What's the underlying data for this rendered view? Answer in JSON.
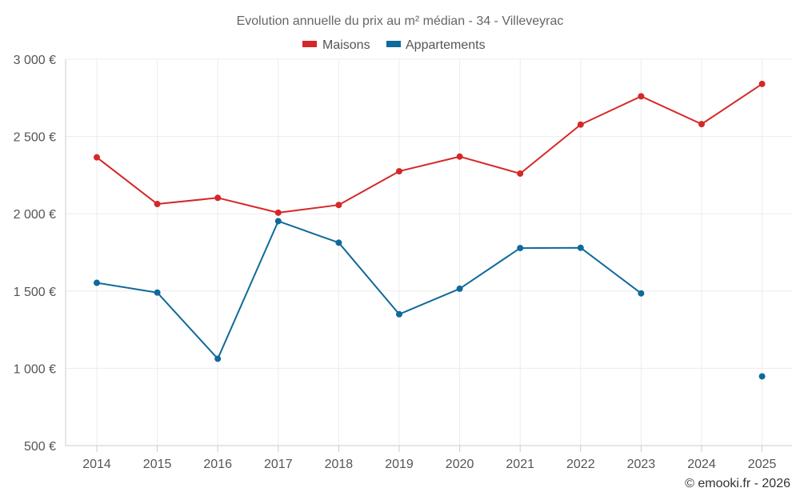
{
  "chart_data": {
    "type": "line",
    "title": "Evolution annuelle du prix au m² médian - 34 - Villeveyrac",
    "categories": [
      "2014",
      "2015",
      "2016",
      "2017",
      "2018",
      "2019",
      "2020",
      "2021",
      "2022",
      "2023",
      "2024",
      "2025"
    ],
    "ylim": [
      500,
      3000
    ],
    "yticks": [
      500,
      1000,
      1500,
      2000,
      2500,
      3000
    ],
    "ytick_labels": [
      "500 €",
      "1 000 €",
      "1 500 €",
      "2 000 €",
      "2 500 €",
      "3 000 €"
    ],
    "series": [
      {
        "name": "Maisons",
        "color": "#d62728",
        "values": [
          2365,
          2063,
          2103,
          2007,
          2057,
          2275,
          2370,
          2260,
          2577,
          2760,
          2580,
          2840
        ]
      },
      {
        "name": "Appartements",
        "color": "#0f6a9a",
        "values": [
          1553,
          1490,
          1062,
          1952,
          1813,
          1350,
          1515,
          1778,
          1780,
          1485,
          null,
          948
        ]
      }
    ],
    "grid": true,
    "legend": "top-center",
    "credit": "© emooki.fr - 2026"
  }
}
